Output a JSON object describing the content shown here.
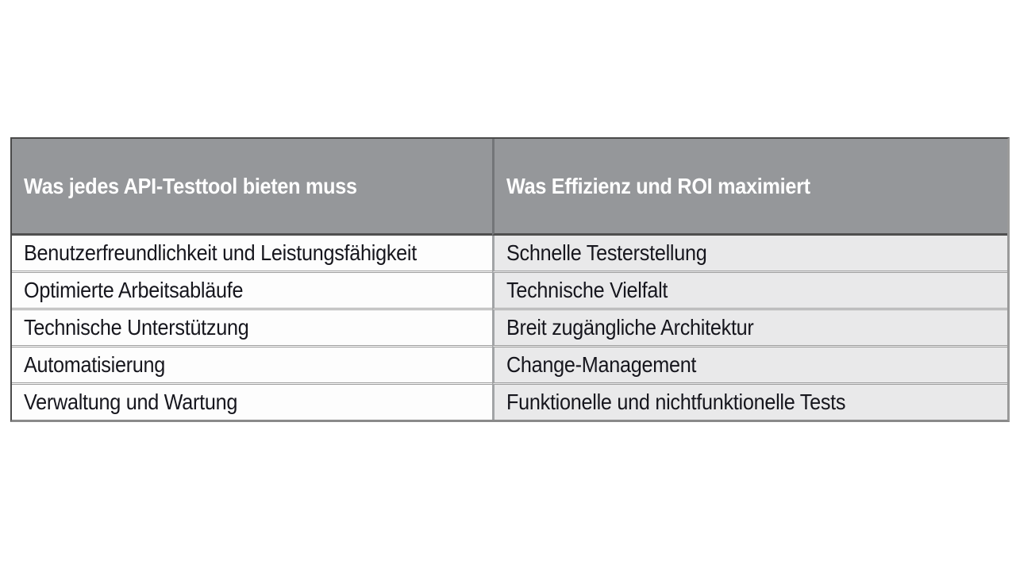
{
  "table": {
    "columns": [
      {
        "header": "Was jedes API-Testtool bieten muss"
      },
      {
        "header": "Was Effizienz und ROI maximiert"
      }
    ],
    "rows": [
      {
        "left": "Benutzerfreundlichkeit und Leistungsfähigkeit",
        "right": "Schnelle Testerstellung"
      },
      {
        "left": "Optimierte Arbeitsabläufe",
        "right": "Technische Vielfalt"
      },
      {
        "left": "Technische Unterstützung",
        "right": "Breit zugängliche Architektur"
      },
      {
        "left": "Automatisierung",
        "right": "Change-Management"
      },
      {
        "left": "Verwaltung und Wartung",
        "right": "Funktionelle und nichtfunktionelle Tests"
      }
    ],
    "colors": {
      "header_bg": "#95979a",
      "header_text": "#ffffff",
      "left_cell_bg": "#fdfdfd",
      "right_cell_bg": "#e9e9ea",
      "body_text": "#16161d",
      "row_separator": "#9e9e9e",
      "header_separator": "#4f4f4f",
      "outer_border_dark": "#4a4a4a",
      "outer_border_light": "#8a8a8a",
      "page_bg": "#ffffff"
    }
  }
}
